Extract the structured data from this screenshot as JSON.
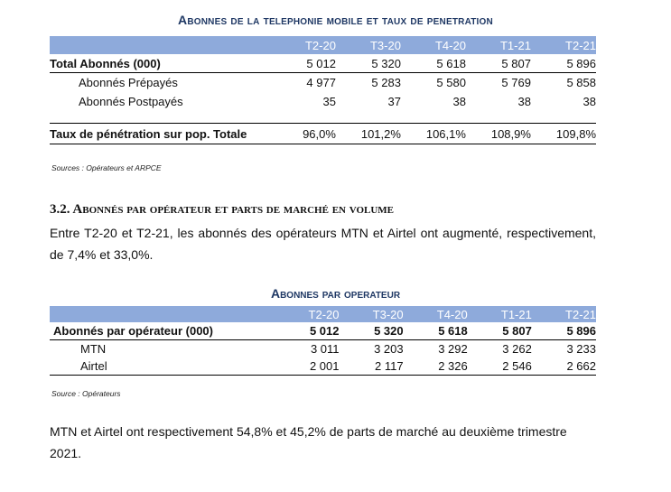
{
  "table1": {
    "title": "Abonnes de la telephonie mobile et taux de penetration",
    "columns": [
      "T2-20",
      "T3-20",
      "T4-20",
      "T1-21",
      "T2-21"
    ],
    "rows": [
      {
        "label": "Total Abonnés (000)",
        "values": [
          "5 012",
          "5 320",
          "5 618",
          "5 807",
          "5 896"
        ]
      },
      {
        "label": "Abonnés Prépayés",
        "values": [
          "4 977",
          "5 283",
          "5 580",
          "5 769",
          "5 858"
        ]
      },
      {
        "label": "Abonnés Postpayés",
        "values": [
          "35",
          "37",
          "38",
          "38",
          "38"
        ]
      },
      {
        "label": "Taux de pénétration sur pop. Totale",
        "values": [
          "96,0%",
          "101,2%",
          "106,1%",
          "108,9%",
          "109,8%"
        ]
      }
    ],
    "source": "Sources : Opérateurs et ARPCE"
  },
  "section": {
    "heading": "3.2. Abonnés par opérateur et parts de marché en volume",
    "paragraph": "Entre T2-20 et T2-21, les abonnés des opérateurs MTN et Airtel ont augmenté, respectivement, de 7,4% et 33,0%."
  },
  "table2": {
    "title": "Abonnes par operateur",
    "columns": [
      "T2-20",
      "T3-20",
      "T4-20",
      "T1-21",
      "T2-21"
    ],
    "rows": [
      {
        "label": "Abonnés par opérateur (000)",
        "values": [
          "5 012",
          "5 320",
          "5 618",
          "5 807",
          "5 896"
        ]
      },
      {
        "label": "MTN",
        "values": [
          "3 011",
          "3 203",
          "3 292",
          "3 262",
          "3 233"
        ]
      },
      {
        "label": "Airtel",
        "values": [
          "2 001",
          "2 117",
          "2 326",
          "2 546",
          "2 662"
        ]
      }
    ],
    "source": "Source : Opérateurs"
  },
  "closing": {
    "paragraph": "MTN et Airtel ont respectivement 54,8% et 45,2% de parts de marché au deuxième trimestre 2021."
  }
}
